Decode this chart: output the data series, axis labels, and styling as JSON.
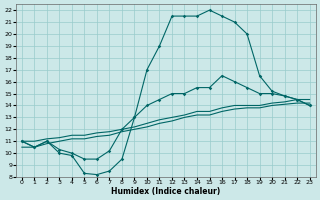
{
  "xlabel": "Humidex (Indice chaleur)",
  "bg_color": "#cce8e8",
  "grid_color": "#99cccc",
  "line_color": "#006666",
  "xlim": [
    -0.5,
    23.5
  ],
  "ylim": [
    8,
    22.5
  ],
  "xticks": [
    0,
    1,
    2,
    3,
    4,
    5,
    6,
    7,
    8,
    9,
    10,
    11,
    12,
    13,
    14,
    15,
    16,
    17,
    18,
    19,
    20,
    21,
    22,
    23
  ],
  "yticks": [
    8,
    9,
    10,
    11,
    12,
    13,
    14,
    15,
    16,
    17,
    18,
    19,
    20,
    21,
    22
  ],
  "line1_x": [
    0,
    1,
    2,
    3,
    4,
    5,
    6,
    7,
    8,
    9,
    10,
    11,
    12,
    13,
    14,
    15,
    16,
    17,
    18,
    19,
    20,
    21,
    22,
    23
  ],
  "line1_y": [
    11,
    10.5,
    11,
    10,
    9.8,
    8.3,
    8.2,
    8.5,
    9.5,
    13,
    17,
    19,
    21.5,
    21.5,
    21.5,
    22,
    21.5,
    21,
    20,
    16.5,
    15.2,
    14.8,
    14.5,
    14
  ],
  "line2_x": [
    0,
    1,
    2,
    3,
    4,
    5,
    6,
    7,
    8,
    9,
    10,
    11,
    12,
    13,
    14,
    15,
    16,
    17,
    18,
    19,
    20,
    21,
    22,
    23
  ],
  "line2_y": [
    11,
    10.5,
    11,
    10.3,
    10,
    9.5,
    9.5,
    10.2,
    12,
    13,
    14,
    14.5,
    15,
    15,
    15.5,
    15.5,
    16.5,
    16,
    15.5,
    15,
    15,
    14.8,
    14.5,
    14
  ],
  "line3_x": [
    0,
    1,
    2,
    3,
    4,
    5,
    6,
    7,
    8,
    9,
    10,
    11,
    12,
    13,
    14,
    15,
    16,
    17,
    18,
    19,
    20,
    21,
    22,
    23
  ],
  "line3_y": [
    11,
    11,
    11.2,
    11.3,
    11.5,
    11.5,
    11.7,
    11.8,
    12,
    12.2,
    12.5,
    12.8,
    13,
    13.2,
    13.5,
    13.5,
    13.8,
    14,
    14,
    14,
    14.2,
    14.3,
    14.5,
    14.5
  ],
  "line4_x": [
    0,
    1,
    2,
    3,
    4,
    5,
    6,
    7,
    8,
    9,
    10,
    11,
    12,
    13,
    14,
    15,
    16,
    17,
    18,
    19,
    20,
    21,
    22,
    23
  ],
  "line4_y": [
    10.5,
    10.5,
    10.8,
    11,
    11.2,
    11.2,
    11.4,
    11.5,
    11.8,
    12,
    12.2,
    12.5,
    12.7,
    13,
    13.2,
    13.2,
    13.5,
    13.7,
    13.8,
    13.8,
    14,
    14.1,
    14.2,
    14.2
  ]
}
